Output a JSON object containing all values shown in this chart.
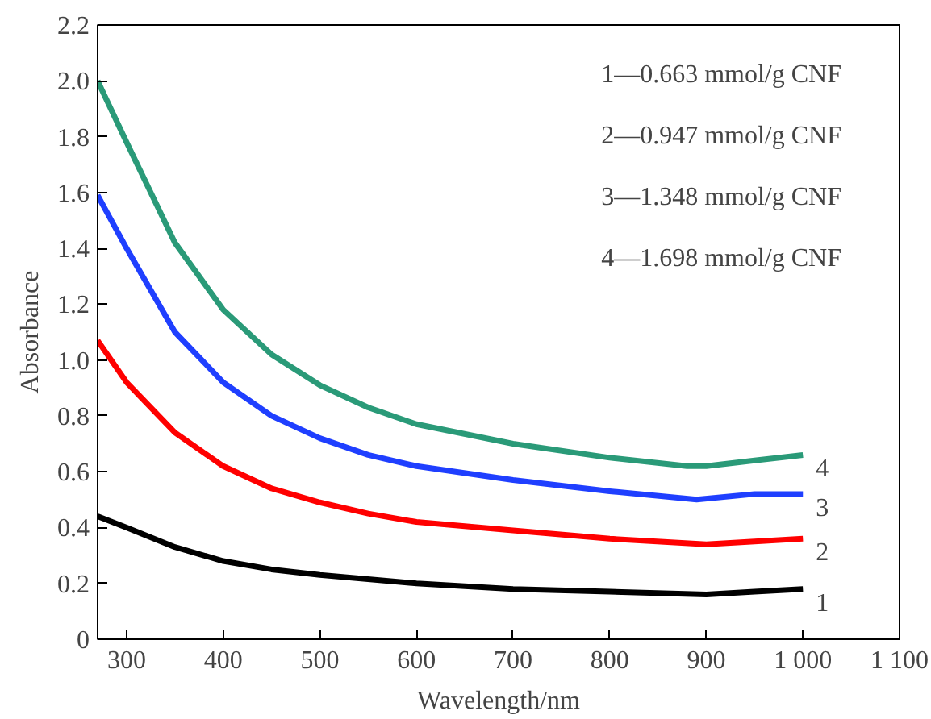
{
  "chart_data": {
    "type": "line",
    "xlabel": "Wavelength/nm",
    "ylabel": "Absorbance",
    "xlim": [
      270,
      1100
    ],
    "ylim": [
      0,
      2.2
    ],
    "xticks": [
      300,
      400,
      500,
      600,
      700,
      800,
      900,
      {
        "value": 1000,
        "label": "1 000"
      },
      {
        "value": 1100,
        "label": "1 100"
      }
    ],
    "yticks": [
      0,
      0.2,
      0.4,
      0.6,
      0.8,
      {
        "value": 1,
        "label": "1.0"
      },
      1.2,
      1.4,
      1.6,
      1.8,
      {
        "value": 2,
        "label": "2.0"
      },
      2.2
    ],
    "annotations": [
      "1—0.663 mmol/g CNF",
      "2—0.947 mmol/g CNF",
      "3—1.348 mmol/g CNF",
      "4—1.698 mmol/g CNF"
    ],
    "series": [
      {
        "name": "1",
        "color": "#000000",
        "x": [
          270,
          300,
          350,
          400,
          450,
          500,
          600,
          700,
          800,
          900,
          950,
          1000
        ],
        "values": [
          0.44,
          0.4,
          0.33,
          0.28,
          0.25,
          0.23,
          0.2,
          0.18,
          0.17,
          0.16,
          0.17,
          0.18
        ]
      },
      {
        "name": "2",
        "color": "#ff0000",
        "x": [
          270,
          300,
          350,
          400,
          450,
          500,
          550,
          600,
          700,
          800,
          900,
          950,
          1000
        ],
        "values": [
          1.07,
          0.92,
          0.74,
          0.62,
          0.54,
          0.49,
          0.45,
          0.42,
          0.39,
          0.36,
          0.34,
          0.35,
          0.36
        ]
      },
      {
        "name": "3",
        "color": "#1f3fff",
        "x": [
          270,
          300,
          350,
          400,
          450,
          500,
          550,
          600,
          700,
          800,
          890,
          950,
          1000
        ],
        "values": [
          1.59,
          1.4,
          1.1,
          0.92,
          0.8,
          0.72,
          0.66,
          0.62,
          0.57,
          0.53,
          0.5,
          0.52,
          0.52
        ]
      },
      {
        "name": "4",
        "color": "#2a9a78",
        "x": [
          270,
          300,
          350,
          400,
          450,
          500,
          550,
          600,
          700,
          800,
          880,
          900,
          950,
          1000
        ],
        "values": [
          2.0,
          1.78,
          1.42,
          1.18,
          1.02,
          0.91,
          0.83,
          0.77,
          0.7,
          0.65,
          0.62,
          0.62,
          0.64,
          0.66
        ]
      }
    ],
    "grid": false
  }
}
